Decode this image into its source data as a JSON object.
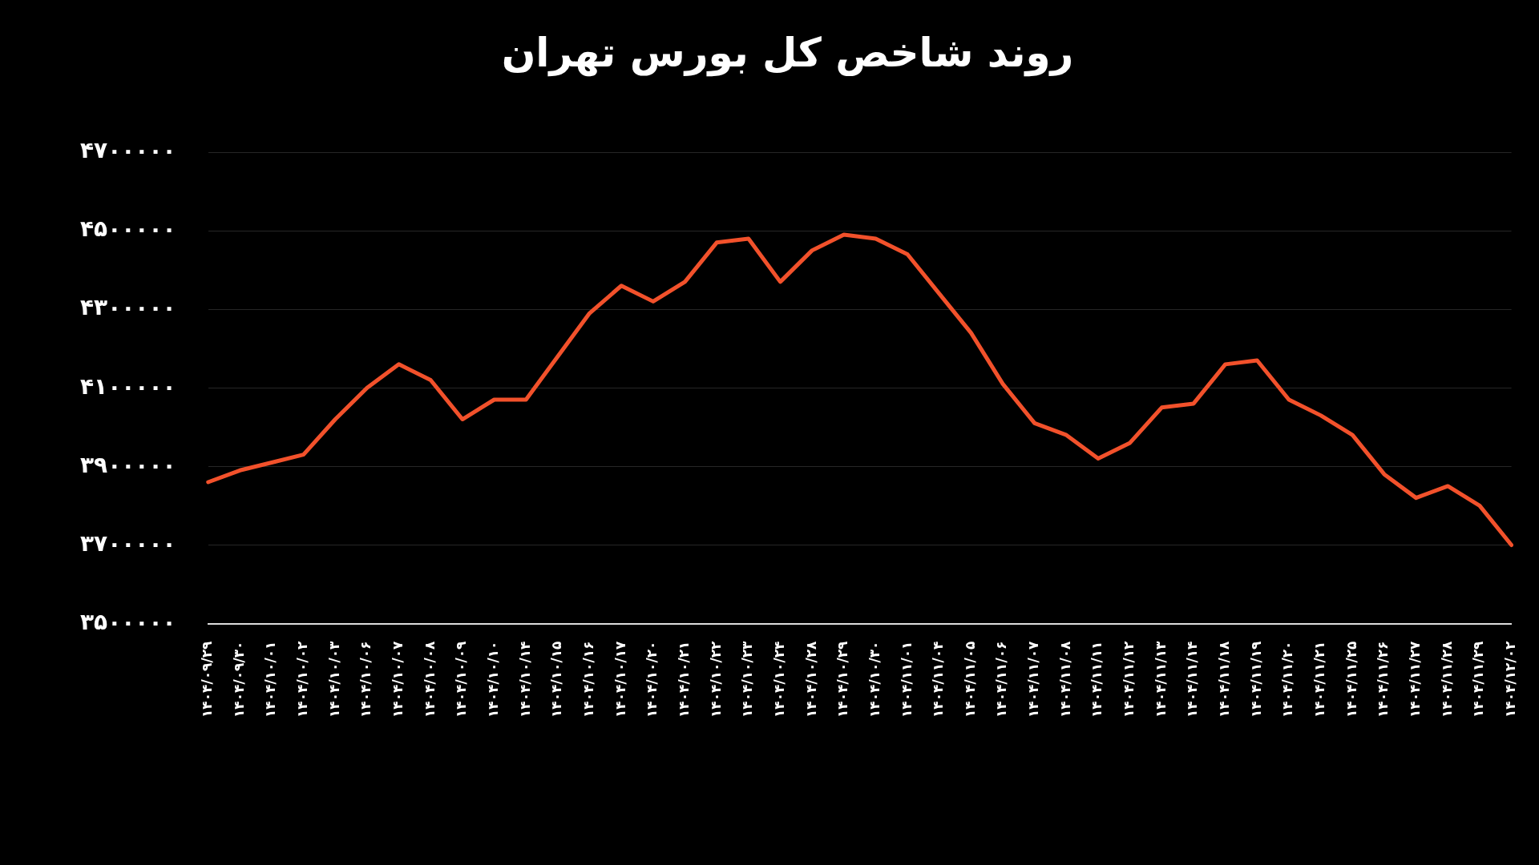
{
  "chart_data": {
    "type": "line",
    "title": "روند شاخص کل بورس تهران",
    "categories": [
      "۱۴۰۴/۰۹/۲۹",
      "۱۴۰۴/۰۹/۳۰",
      "۱۴۰۴/۱۰/۰۱",
      "۱۴۰۴/۱۰/۰۲",
      "۱۴۰۴/۱۰/۰۳",
      "۱۴۰۴/۱۰/۰۶",
      "۱۴۰۴/۱۰/۰۷",
      "۱۴۰۴/۱۰/۰۸",
      "۱۴۰۴/۱۰/۰۹",
      "۱۴۰۴/۱۰/۱۰",
      "۱۴۰۴/۱۰/۱۴",
      "۱۴۰۴/۱۰/۱۵",
      "۱۴۰۴/۱۰/۱۶",
      "۱۴۰۴/۱۰/۱۷",
      "۱۴۰۴/۱۰/۲۰",
      "۱۴۰۴/۱۰/۲۱",
      "۱۴۰۴/۱۰/۲۲",
      "۱۴۰۴/۱۰/۲۳",
      "۱۴۰۴/۱۰/۲۴",
      "۱۴۰۴/۱۰/۲۸",
      "۱۴۰۴/۱۰/۲۹",
      "۱۴۰۴/۱۰/۳۰",
      "۱۴۰۴/۱۱/۰۱",
      "۱۴۰۴/۱۱/۰۴",
      "۱۴۰۴/۱۱/۰۵",
      "۱۴۰۴/۱۱/۰۶",
      "۱۴۰۴/۱۱/۰۷",
      "۱۴۰۴/۱۱/۰۸",
      "۱۴۰۴/۱۱/۱۱",
      "۱۴۰۴/۱۱/۱۲",
      "۱۴۰۴/۱۱/۱۳",
      "۱۴۰۴/۱۱/۱۴",
      "۱۴۰۴/۱۱/۱۸",
      "۱۴۰۴/۱۱/۱۹",
      "۱۴۰۴/۱۱/۲۰",
      "۱۴۰۴/۱۱/۲۱",
      "۱۴۰۴/۱۱/۲۵",
      "۱۴۰۴/۱۱/۲۶",
      "۱۴۰۴/۱۱/۲۷",
      "۱۴۰۴/۱۱/۲۸",
      "۱۴۰۴/۱۱/۲۹",
      "۱۴۰۴/۱۲/۰۲"
    ],
    "series": [
      {
        "color": "#f2512b",
        "values": [
          3860000,
          3890000,
          3910000,
          3930000,
          4020000,
          4100000,
          4160000,
          4120000,
          4020000,
          4070000,
          4070000,
          4180000,
          4290000,
          4360000,
          4320000,
          4370000,
          4470000,
          4480000,
          4370000,
          4450000,
          4490000,
          4480000,
          4440000,
          4340000,
          4240000,
          4110000,
          4010000,
          3980000,
          3920000,
          3960000,
          4050000,
          4060000,
          4160000,
          4170000,
          4070000,
          4030000,
          3980000,
          3880000,
          3820000,
          3850000,
          3800000,
          3700000
        ]
      }
    ],
    "ylim": [
      3500000,
      4700000
    ],
    "yticks": [
      {
        "value": 3500000,
        "label": "۳۵۰۰۰۰۰"
      },
      {
        "value": 3700000,
        "label": "۳۷۰۰۰۰۰"
      },
      {
        "value": 3900000,
        "label": "۳۹۰۰۰۰۰"
      },
      {
        "value": 4100000,
        "label": "۴۱۰۰۰۰۰"
      },
      {
        "value": 4300000,
        "label": "۴۳۰۰۰۰۰"
      },
      {
        "value": 4500000,
        "label": "۴۵۰۰۰۰۰"
      },
      {
        "value": 4700000,
        "label": "۴۷۰۰۰۰۰"
      }
    ],
    "grid": "y",
    "marker": "none"
  }
}
